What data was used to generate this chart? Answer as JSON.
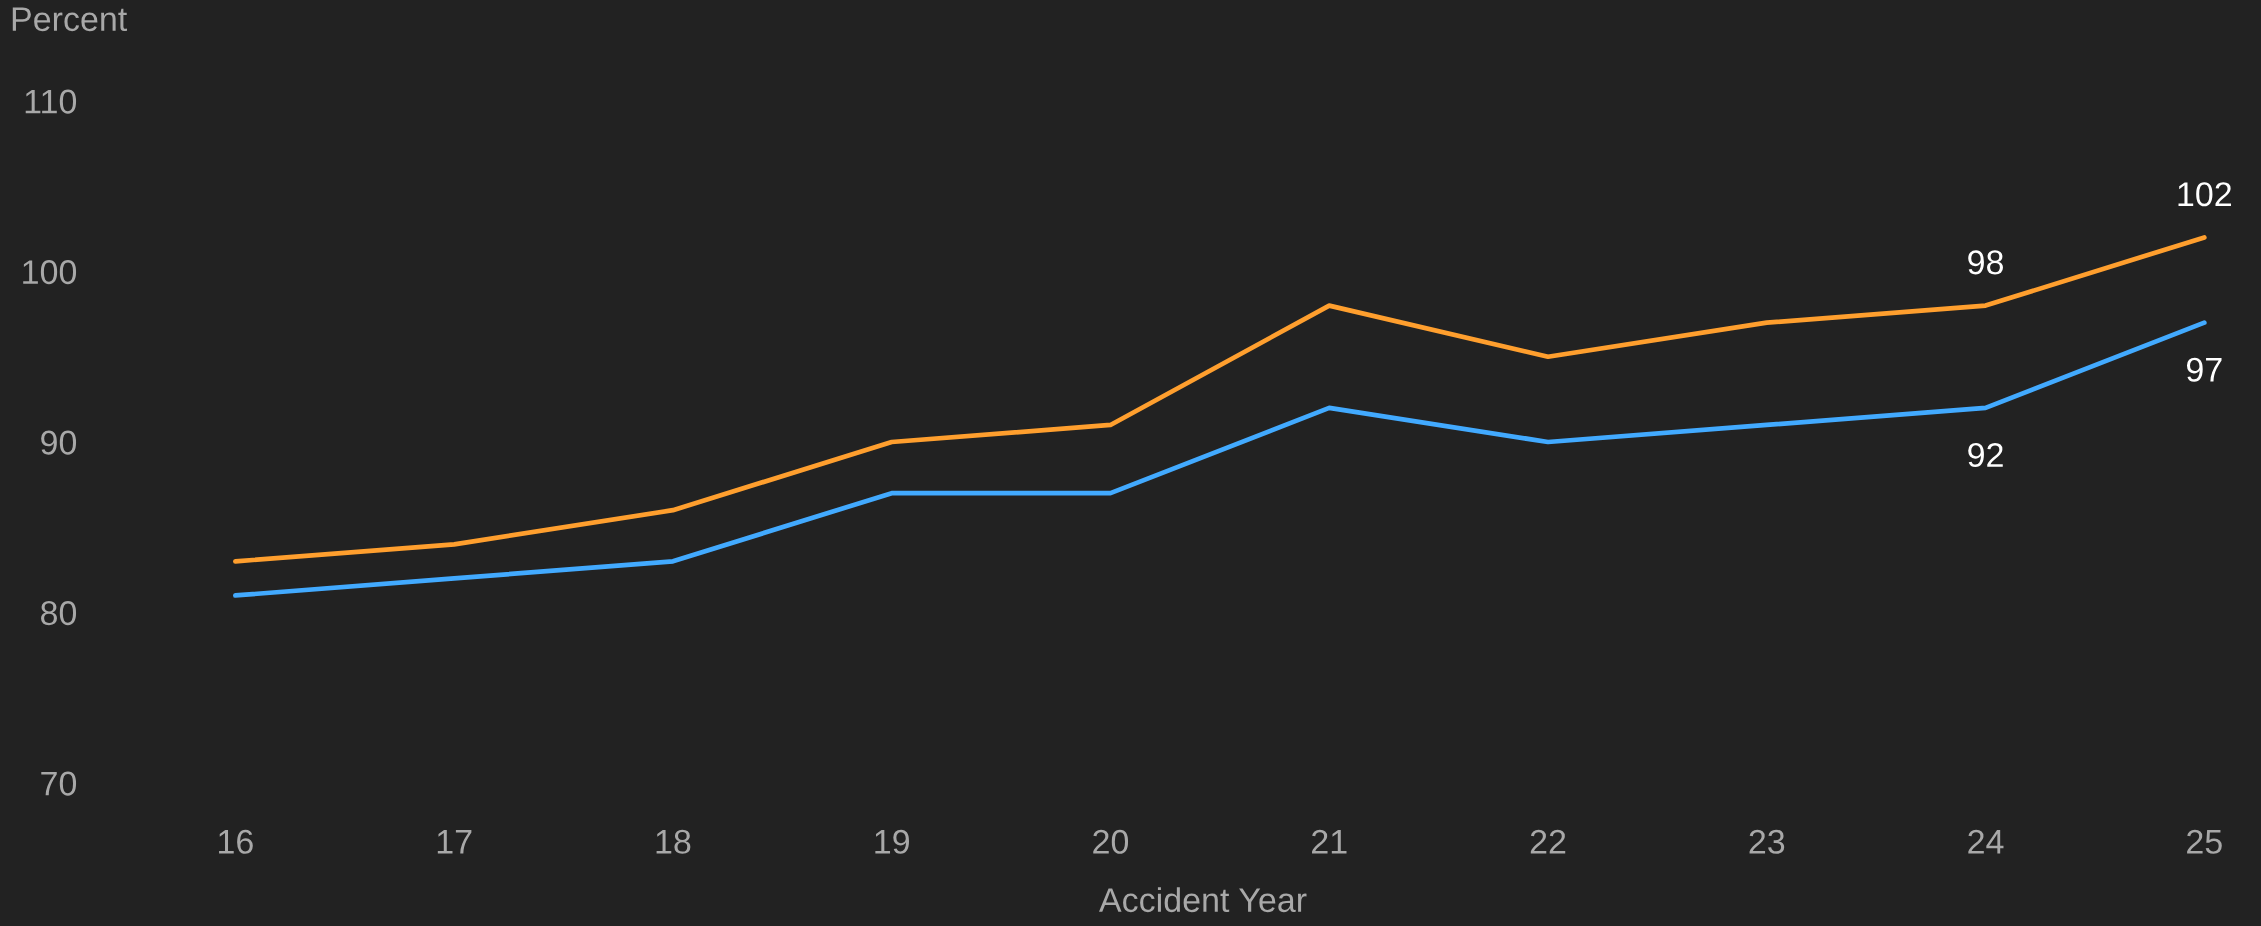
{
  "chart_data": {
    "type": "line",
    "xlabel": "Accident Year",
    "ylabel": "Percent",
    "categories": [
      "16",
      "17",
      "18",
      "19",
      "20",
      "21",
      "22",
      "23",
      "24",
      "25"
    ],
    "ylim": [
      70,
      110
    ],
    "yticks": [
      70,
      80,
      90,
      100,
      110
    ],
    "grid": false,
    "marker": "none",
    "line_style": "solid",
    "series": [
      {
        "color": "#ff9f2e",
        "values": [
          83,
          84,
          86,
          90,
          91,
          98,
          95,
          97,
          98,
          102
        ],
        "value_labels": [
          null,
          null,
          null,
          null,
          null,
          null,
          null,
          null,
          "98",
          "102"
        ]
      },
      {
        "color": "#42aaff",
        "values": [
          81,
          82,
          83,
          87,
          87,
          92,
          90,
          91,
          92,
          97
        ],
        "value_labels": [
          null,
          null,
          null,
          null,
          null,
          null,
          null,
          null,
          "92",
          "97"
        ]
      }
    ]
  }
}
